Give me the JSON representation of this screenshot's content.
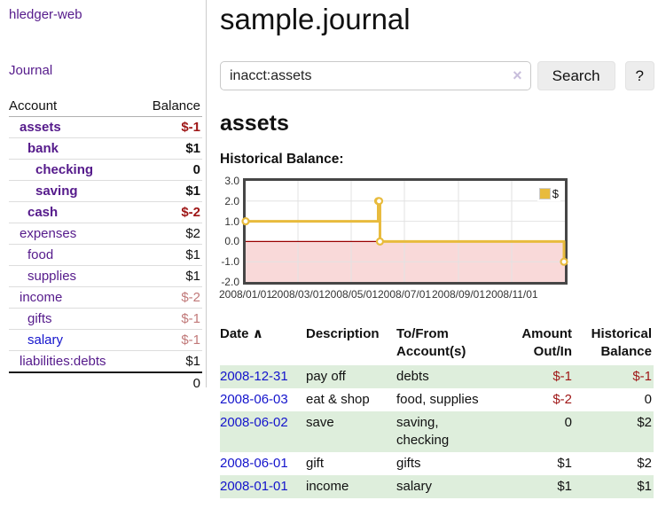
{
  "colors": {
    "link_purple": "#551A8B",
    "link_blue": "#1414CC",
    "negative_strong": "#9E1616",
    "negative_soft": "#C17979",
    "row_green": "#DEEEDC",
    "chart_gold": "#E8BB3D"
  },
  "sidebar": {
    "app_title": "hledger-web",
    "journal_label": "Journal",
    "accounts_table": {
      "headers": {
        "account": "Account",
        "balance": "Balance"
      },
      "rows": [
        {
          "account": "assets",
          "balance": "$-1",
          "indent": 0,
          "bold": true,
          "neg": "strong"
        },
        {
          "account": "bank",
          "balance": "$1",
          "indent": 1,
          "bold": true,
          "neg": "none"
        },
        {
          "account": "checking",
          "balance": "0",
          "indent": 2,
          "bold": true,
          "neg": "none"
        },
        {
          "account": "saving",
          "balance": "$1",
          "indent": 2,
          "bold": true,
          "neg": "none"
        },
        {
          "account": "cash",
          "balance": "$-2",
          "indent": 1,
          "bold": true,
          "neg": "strong"
        },
        {
          "account": "expenses",
          "balance": "$2",
          "indent": 0,
          "bold": false,
          "neg": "none"
        },
        {
          "account": "food",
          "balance": "$1",
          "indent": 1,
          "bold": false,
          "neg": "none"
        },
        {
          "account": "supplies",
          "balance": "$1",
          "indent": 1,
          "bold": false,
          "neg": "none"
        },
        {
          "account": "income",
          "balance": "$-2",
          "indent": 0,
          "bold": false,
          "neg": "soft"
        },
        {
          "account": "gifts",
          "balance": "$-1",
          "indent": 1,
          "bold": false,
          "neg": "soft"
        },
        {
          "account": "salary",
          "balance": "$-1",
          "indent": 1,
          "bold": false,
          "neg": "soft",
          "blue_link": true
        },
        {
          "account": "liabilities:debts",
          "balance": "$1",
          "indent": 0,
          "bold": false,
          "neg": "none"
        }
      ],
      "total": "0"
    }
  },
  "main": {
    "page_title": "sample.journal",
    "search": {
      "value": "inacct:assets",
      "clear_icon": "×",
      "button_label": "Search",
      "help_label": "?"
    },
    "account_heading": "assets",
    "chart_label": "Historical Balance:"
  },
  "chart_data": {
    "type": "line",
    "style": "steps",
    "title": "Historical Balance",
    "series": [
      {
        "name": "$",
        "color": "#E8BB3D",
        "points": [
          {
            "date": "2008-01-01",
            "x_day": 0,
            "y": 1
          },
          {
            "date": "2008-06-01",
            "x_day": 152,
            "y": 2
          },
          {
            "date": "2008-06-02",
            "x_day": 153,
            "y": 2
          },
          {
            "date": "2008-06-03",
            "x_day": 154,
            "y": 0
          },
          {
            "date": "2008-12-31",
            "x_day": 365,
            "y": -1
          }
        ]
      }
    ],
    "x_domain_days": [
      0,
      366
    ],
    "ylim": [
      -2,
      3
    ],
    "y_ticks": [
      {
        "value": 3,
        "label": "3.0"
      },
      {
        "value": 2,
        "label": "2.0"
      },
      {
        "value": 1,
        "label": "1.0"
      },
      {
        "value": 0,
        "label": "0.0"
      },
      {
        "value": -1,
        "label": "-1.0"
      },
      {
        "value": -2,
        "label": "-2.0"
      }
    ],
    "x_ticks": [
      {
        "day": 0,
        "label": "2008/01/01"
      },
      {
        "day": 60,
        "label": "2008/03/01"
      },
      {
        "day": 121,
        "label": "2008/05/01"
      },
      {
        "day": 182,
        "label": "2008/07/01"
      },
      {
        "day": 244,
        "label": "2008/09/01"
      },
      {
        "day": 305,
        "label": "2008/11/01"
      }
    ],
    "grid": true,
    "grid_color": "#e2e2e2",
    "border_color": "#464646",
    "negative_region_color": "#F9D9D9",
    "zero_line_color": "#990000",
    "legend": {
      "label": "$",
      "position": "top-right"
    }
  },
  "register": {
    "headers": {
      "date": "Date",
      "sort_icon": "∧",
      "description": "Description",
      "accounts_line1": "To/From",
      "accounts_line2": "Account(s)",
      "amount_line1": "Amount",
      "amount_line2": "Out/In",
      "balance_line1": "Historical",
      "balance_line2": "Balance"
    },
    "rows": [
      {
        "date": "2008-12-31",
        "description": "pay off",
        "accounts": "debts",
        "amount": "$-1",
        "balance": "$-1",
        "amount_negative": true,
        "balance_negative": true,
        "green": true
      },
      {
        "date": "2008-06-03",
        "description": "eat & shop",
        "accounts": "food, supplies",
        "amount": "$-2",
        "balance": "0",
        "amount_negative": true,
        "balance_negative": false,
        "green": false
      },
      {
        "date": "2008-06-02",
        "description": "save",
        "accounts": "saving, checking",
        "amount": "0",
        "balance": "$2",
        "amount_negative": false,
        "balance_negative": false,
        "green": true
      },
      {
        "date": "2008-06-01",
        "description": "gift",
        "accounts": "gifts",
        "amount": "$1",
        "balance": "$2",
        "amount_negative": false,
        "balance_negative": false,
        "green": false
      },
      {
        "date": "2008-01-01",
        "description": "income",
        "accounts": "salary",
        "amount": "$1",
        "balance": "$1",
        "amount_negative": false,
        "balance_negative": false,
        "green": true
      }
    ]
  }
}
